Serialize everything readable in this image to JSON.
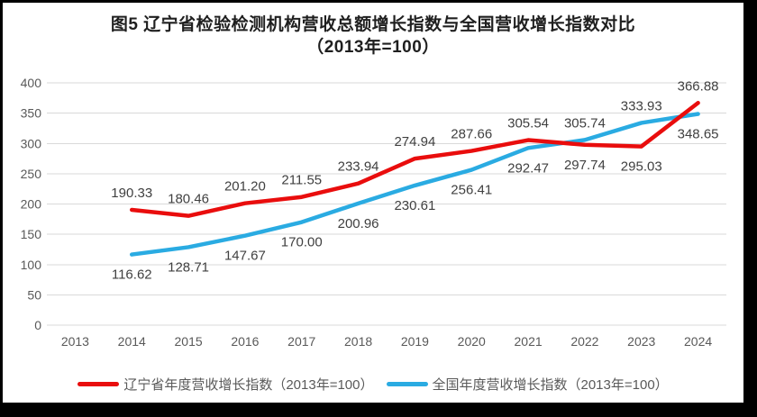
{
  "figure": {
    "title_line1": "图5  辽宁省检验检测机构营收总额增长指数与全国营收增长指数对比",
    "title_line2": "（2013年=100）"
  },
  "chart_data": {
    "type": "line",
    "title": "图5 辽宁省检验检测机构营收总额增长指数与全国营收增长指数对比（2013年=100）",
    "categories": [
      "2013",
      "2014",
      "2015",
      "2016",
      "2017",
      "2018",
      "2019",
      "2020",
      "2021",
      "2022",
      "2023",
      "2024"
    ],
    "series": [
      {
        "name": "辽宁省年度营收增长指数（2013年=100）",
        "color": "#e90d0d",
        "values": [
          null,
          190.33,
          180.46,
          201.2,
          211.55,
          233.94,
          274.94,
          287.66,
          305.54,
          297.74,
          295.03,
          366.88
        ]
      },
      {
        "name": "全国年度营收增长指数（2013年=100）",
        "color": "#2aabe2",
        "values": [
          null,
          116.62,
          128.71,
          147.67,
          170.0,
          200.96,
          230.61,
          256.41,
          292.47,
          305.74,
          333.93,
          348.65
        ]
      }
    ],
    "xlabel": "",
    "ylabel": "",
    "ylim": [
      0,
      400
    ],
    "ytick_interval": 50,
    "yticks": [
      0,
      50,
      100,
      150,
      200,
      250,
      300,
      350,
      400
    ],
    "grid": "horizontal",
    "legend_position": "bottom",
    "data_labels": true,
    "data_label_decimals": 2
  },
  "colors": {
    "gridline": "#d9d9d9",
    "axis_label": "#595959",
    "data_label": "#404040",
    "title": "#1f1f1f",
    "frame_border": "#000000",
    "background": "#ffffff"
  }
}
